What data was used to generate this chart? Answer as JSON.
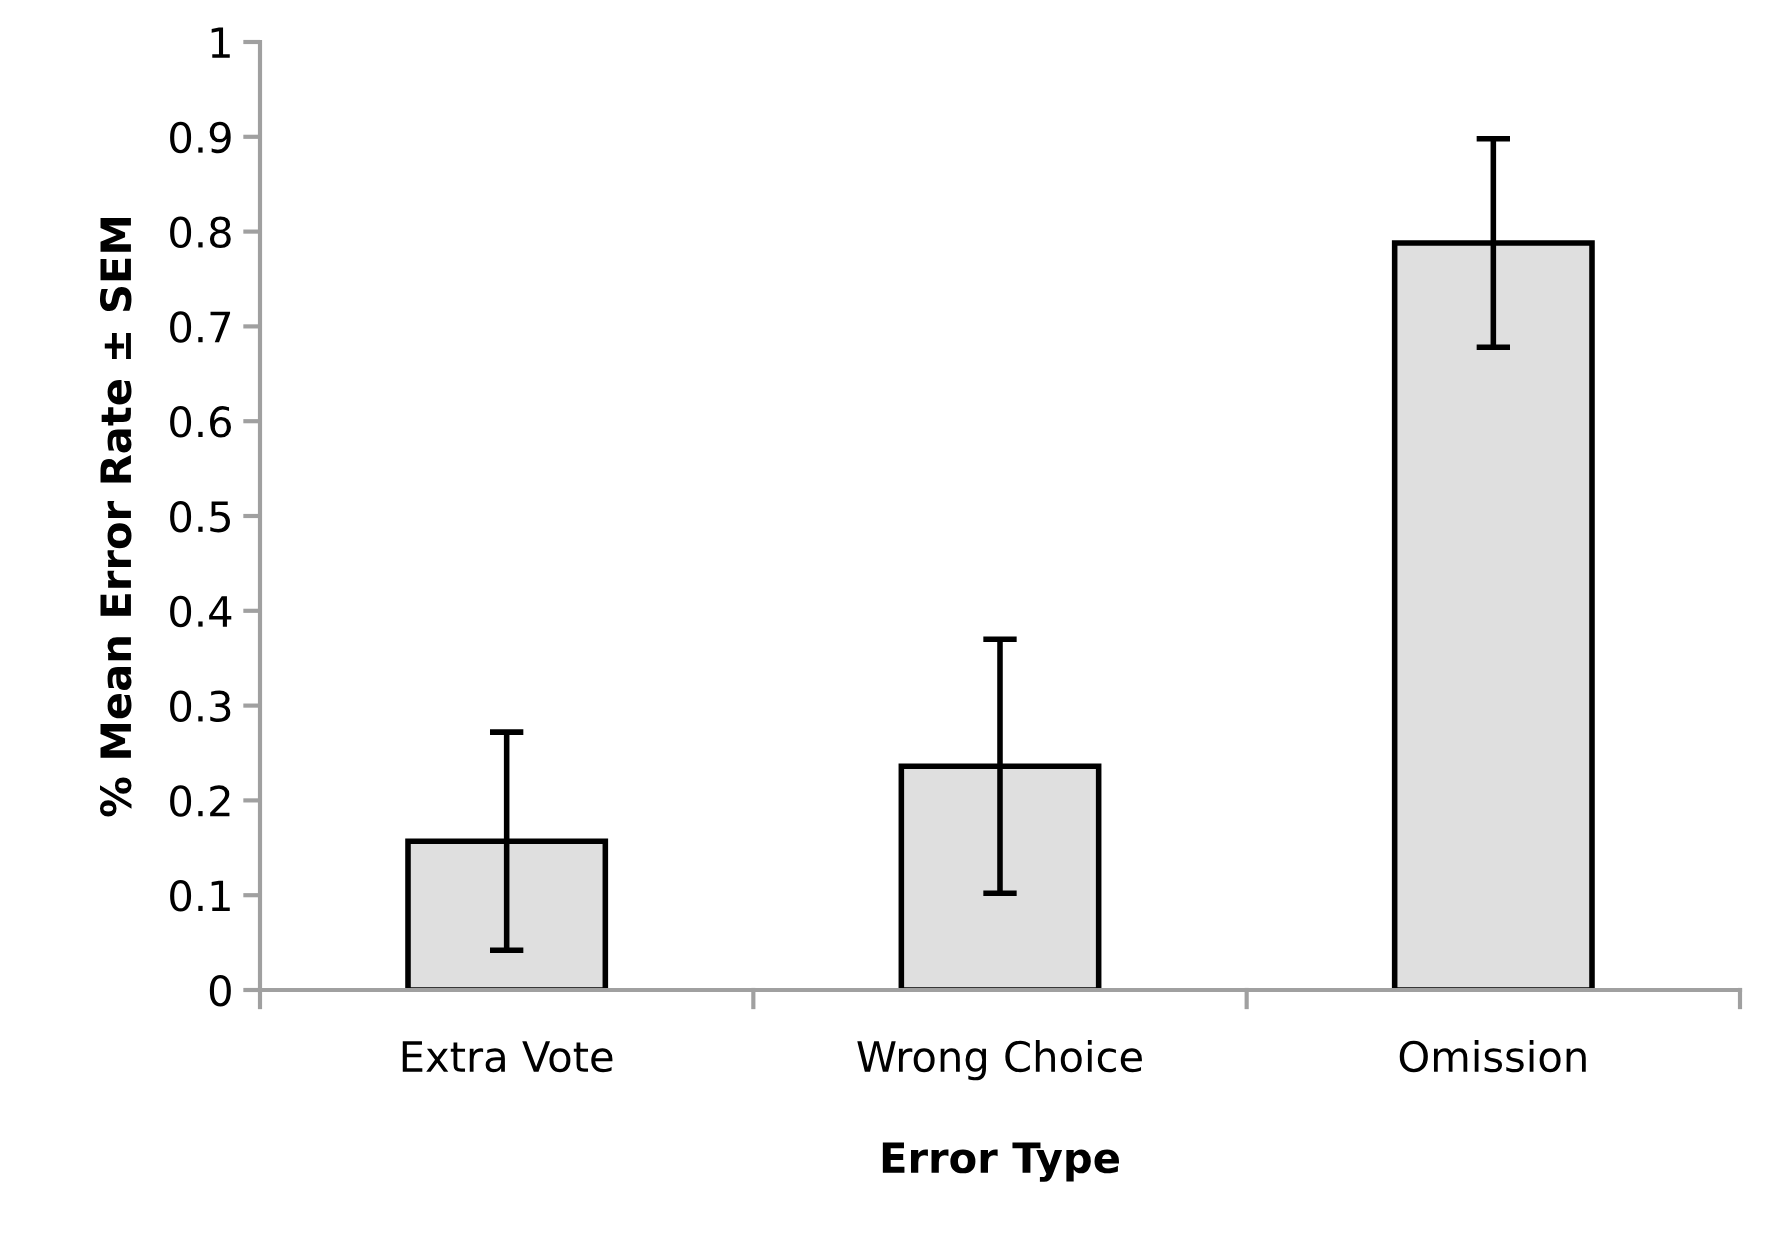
{
  "chart_data": {
    "type": "bar",
    "xlabel": "Error Type",
    "ylabel": "% Mean Error Rate ± SEM",
    "categories": [
      "Extra Vote",
      "Wrong Choice",
      "Omission"
    ],
    "values": [
      0.157,
      0.236,
      0.788
    ],
    "errors": [
      0.115,
      0.134,
      0.11
    ],
    "color": "#dfdfdf",
    "ylim": [
      0,
      1
    ],
    "yticks": [
      0,
      0.1,
      0.2,
      0.3,
      0.4,
      0.5,
      0.6,
      0.7,
      0.8,
      0.9,
      1
    ],
    "grid": false,
    "legend": false
  }
}
